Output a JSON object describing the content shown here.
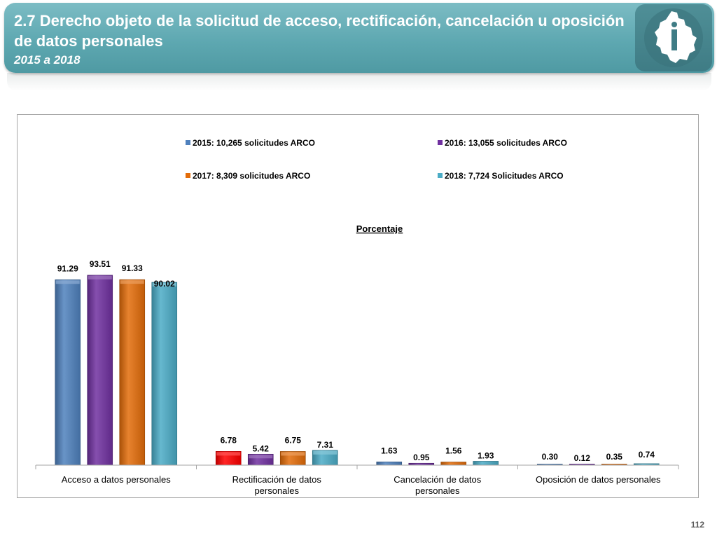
{
  "header": {
    "title": "2.7 Derecho objeto de la solicitud de acceso, rectificación, cancelación u oposición de datos personales",
    "subtitle": "2015 a 2018",
    "logo_icon": "cdmx-map-logo-icon"
  },
  "page_number": "112",
  "chart_data": {
    "type": "bar",
    "title": "Porcentaje",
    "categories": [
      "Acceso a datos personales",
      "Rectificación de datos personales",
      "Cancelación de datos personales",
      "Oposición de datos personales"
    ],
    "series": [
      {
        "name": "2015: 10,265 solicitudes ARCO",
        "color": "#4f81bd",
        "values": [
          91.29,
          6.78,
          1.63,
          0.3
        ],
        "value_labels": [
          "91.29",
          "6.78",
          "1.63",
          "0.30"
        ]
      },
      {
        "name": "2016: 13,055 solicitudes ARCO",
        "color": "#7030a0",
        "values": [
          93.51,
          5.42,
          0.95,
          0.12
        ],
        "value_labels": [
          "93.51",
          "5.42",
          "0.95",
          "0.12"
        ]
      },
      {
        "name": "2017: 8,309 solicitudes ARCO",
        "color": "#e36c09",
        "values": [
          91.33,
          6.75,
          1.56,
          0.35
        ],
        "value_labels": [
          "91.33",
          "6.75",
          "1.56",
          "0.35"
        ]
      },
      {
        "name": "2018: 7,724 Solicitudes ARCO",
        "color": "#4bacc6",
        "values": [
          90.02,
          7.31,
          1.93,
          0.74
        ],
        "value_labels": [
          "90.02",
          "7.31",
          "1.93",
          "0.74"
        ]
      }
    ],
    "highlight": {
      "series": 0,
      "category": 1,
      "color": "#ff0000"
    },
    "ylim": [
      0,
      100
    ],
    "legend_position": "top",
    "grid": false
  }
}
